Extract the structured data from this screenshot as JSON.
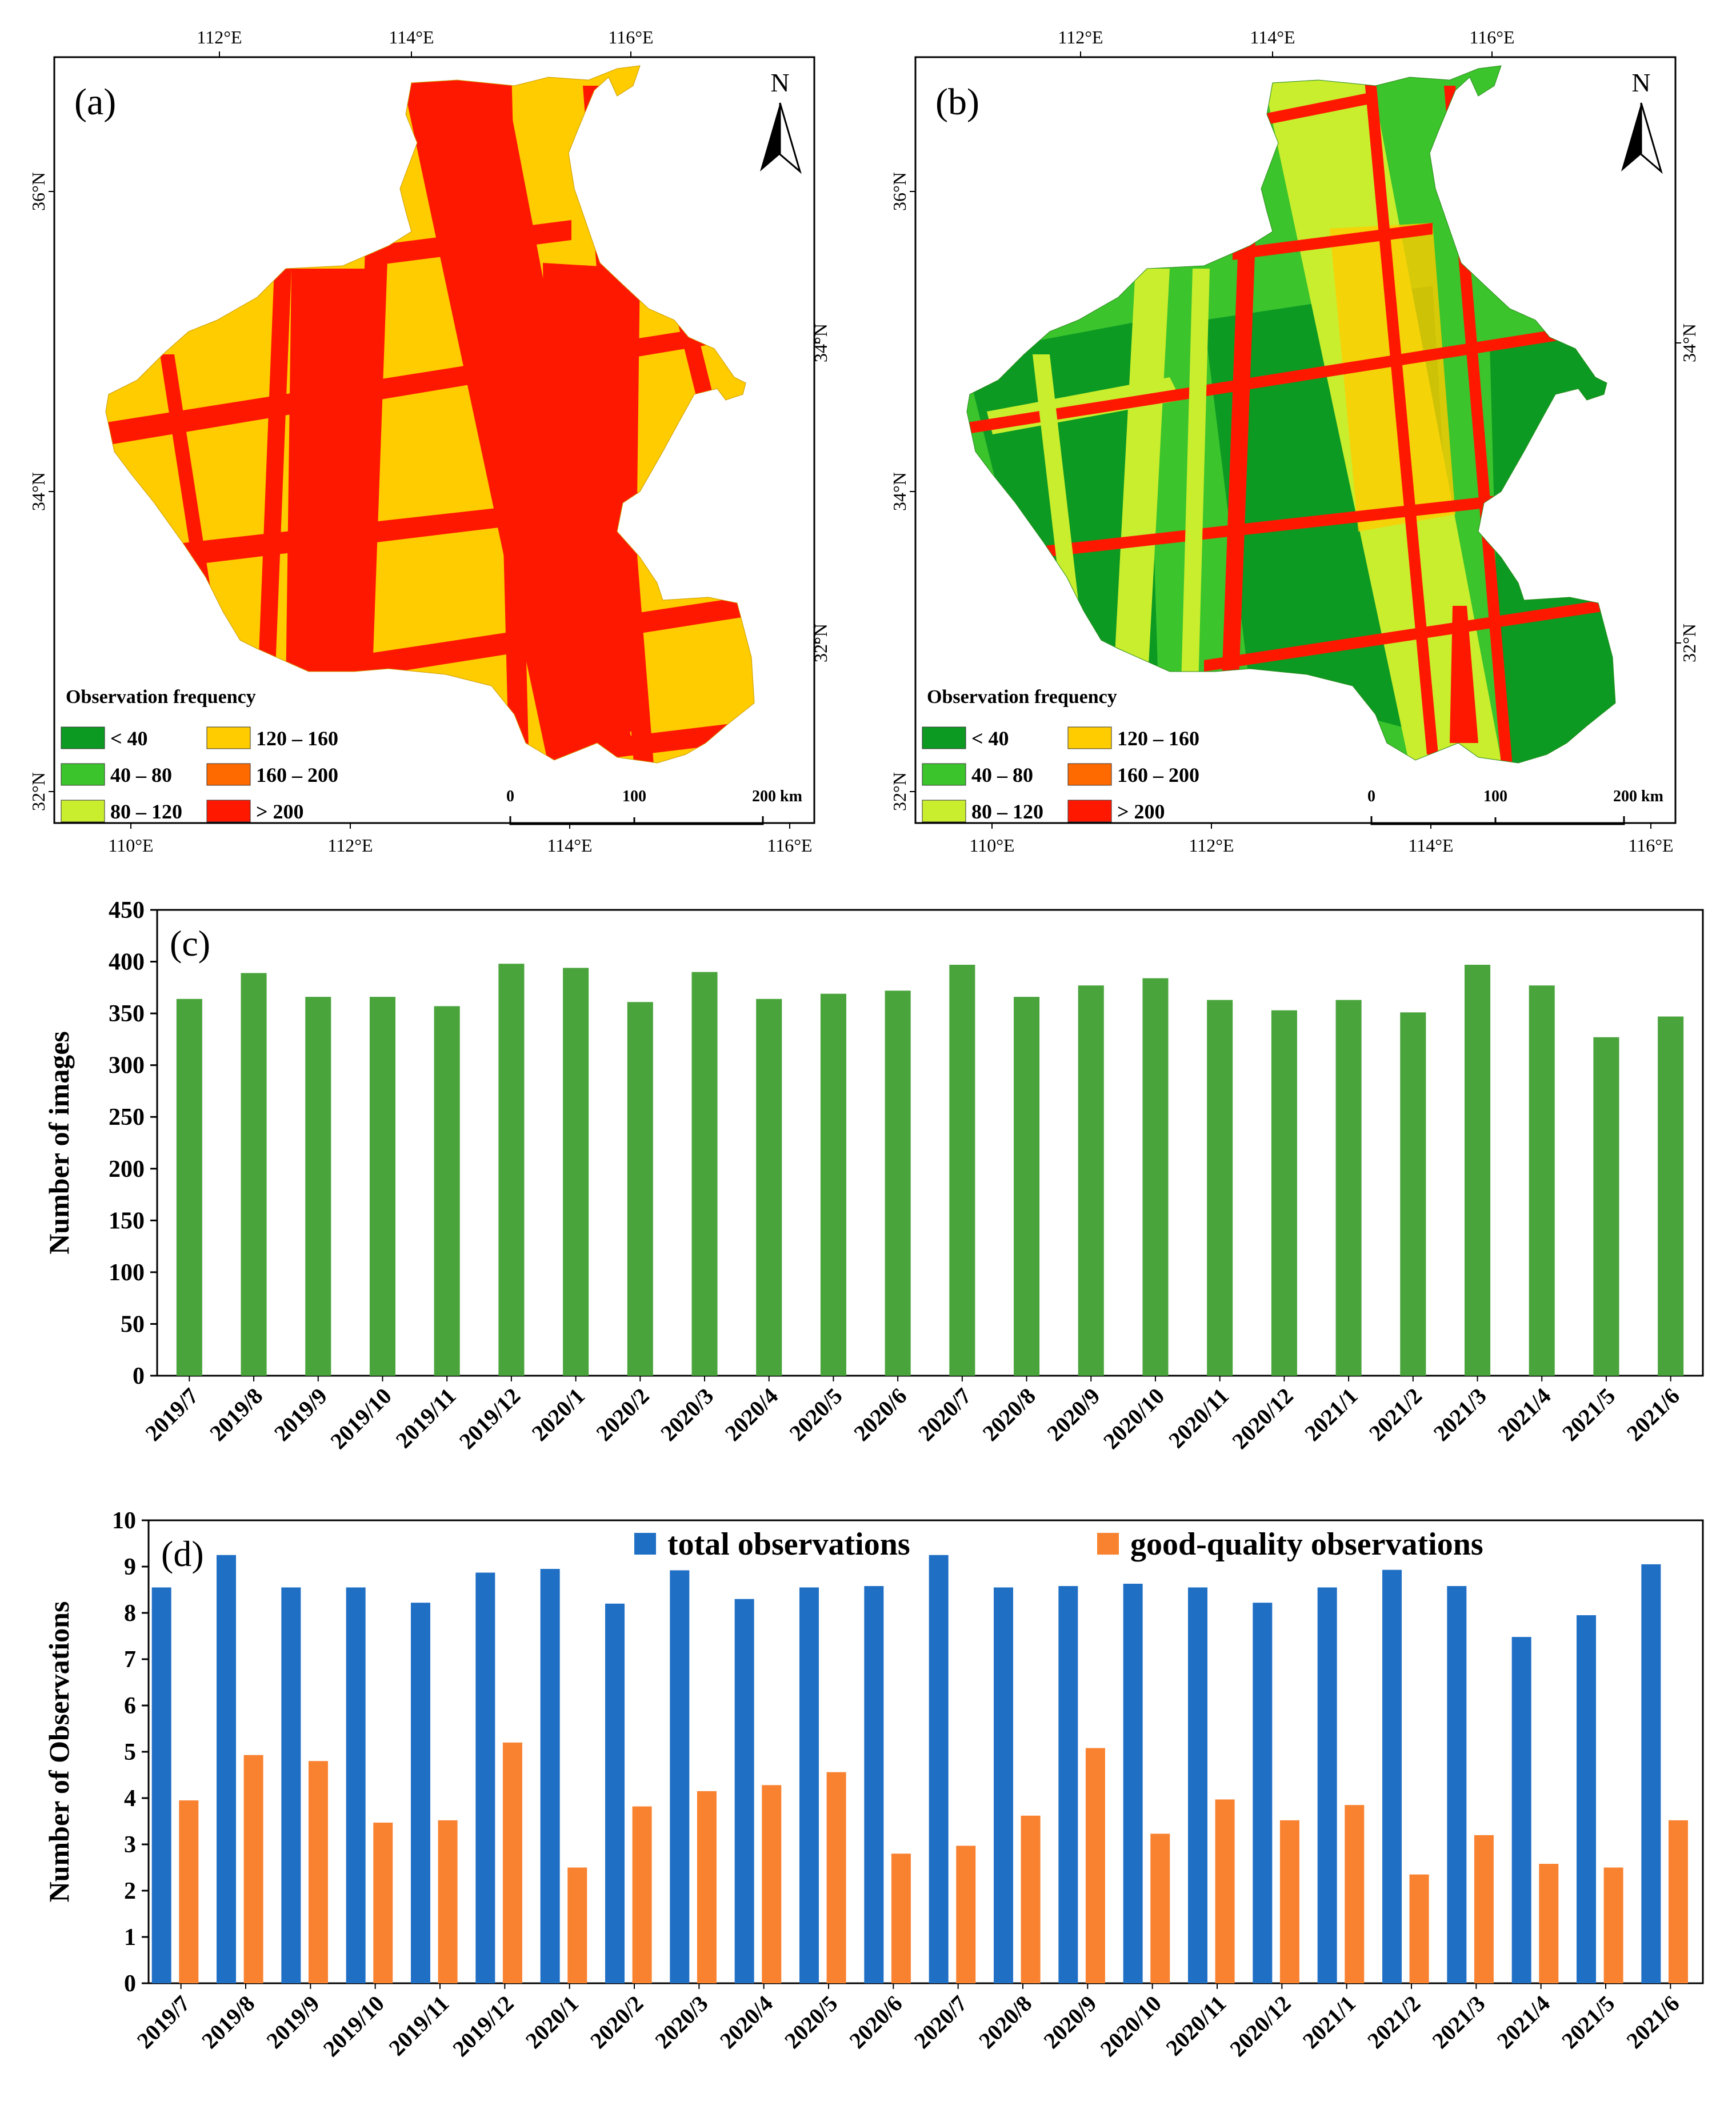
{
  "colors": {
    "c_lt40": "#0c9a23",
    "c_40_80": "#3bc42c",
    "c_80_120": "#c9ee2e",
    "c_120_160": "#ffcc00",
    "c_160_200": "#ff6a00",
    "c_gt200": "#ff1800",
    "bar_green": "#4aa43c",
    "bar_blue": "#1f6fc5",
    "bar_orange": "#f98231"
  },
  "map_a": {
    "label": "(a)",
    "north": "N",
    "top_ticks": [
      "112°E",
      "114°E",
      "116°E"
    ],
    "bottom_ticks": [
      "110°E",
      "112°E",
      "114°E",
      "116°E"
    ],
    "left_ticks": [
      "36°N",
      "34°N",
      "32°N"
    ],
    "right_ticks": [
      "34°N",
      "32°N"
    ],
    "legend_title": "Observation frequency",
    "legend": [
      "< 40",
      "40 – 80",
      "80 – 120",
      "120 – 160",
      "160 – 200",
      "> 200"
    ],
    "scale": [
      "0",
      "100",
      "200 km"
    ]
  },
  "map_b": {
    "label": "(b)",
    "north": "N",
    "top_ticks": [
      "112°E",
      "114°E",
      "116°E"
    ],
    "bottom_ticks": [
      "110°E",
      "112°E",
      "114°E",
      "116°E"
    ],
    "left_ticks": [
      "36°N",
      "34°N",
      "32°N"
    ],
    "right_ticks": [
      "34°N",
      "32°N"
    ],
    "legend_title": "Observation frequency",
    "legend": [
      "< 40",
      "40 – 80",
      "80 – 120",
      "120 – 160",
      "160 – 200",
      "> 200"
    ],
    "scale": [
      "0",
      "100",
      "200 km"
    ]
  },
  "chart_data": [
    {
      "type": "bar",
      "label": "(c)",
      "ylabel": "Number of images",
      "ylim": [
        0,
        450
      ],
      "yticks": [
        0,
        50,
        100,
        150,
        200,
        250,
        300,
        350,
        400,
        450
      ],
      "categories": [
        "2019/7",
        "2019/8",
        "2019/9",
        "2019/10",
        "2019/11",
        "2019/12",
        "2020/1",
        "2020/2",
        "2020/3",
        "2020/4",
        "2020/5",
        "2020/6",
        "2020/7",
        "2020/8",
        "2020/9",
        "2020/10",
        "2020/11",
        "2020/12",
        "2021/1",
        "2021/2",
        "2021/3",
        "2021/4",
        "2021/5",
        "2021/6"
      ],
      "values": [
        364,
        389,
        366,
        366,
        357,
        398,
        394,
        361,
        390,
        364,
        369,
        372,
        397,
        366,
        377,
        384,
        363,
        353,
        363,
        351,
        397,
        377,
        327,
        347
      ]
    },
    {
      "type": "bar",
      "label": "(d)",
      "ylabel": "Number of Observations",
      "ylim": [
        0,
        10
      ],
      "yticks": [
        0,
        1,
        2,
        3,
        4,
        5,
        6,
        7,
        8,
        9,
        10
      ],
      "categories": [
        "2019/7",
        "2019/8",
        "2019/9",
        "2019/10",
        "2019/11",
        "2019/12",
        "2020/1",
        "2020/2",
        "2020/3",
        "2020/4",
        "2020/5",
        "2020/6",
        "2020/7",
        "2020/8",
        "2020/9",
        "2020/10",
        "2020/11",
        "2020/12",
        "2021/1",
        "2021/2",
        "2021/3",
        "2021/4",
        "2021/5",
        "2021/6"
      ],
      "legend_placement": "top",
      "series": [
        {
          "name": "total observations",
          "values": [
            8.55,
            9.25,
            8.55,
            8.55,
            8.22,
            8.87,
            8.95,
            8.2,
            8.92,
            8.3,
            8.55,
            8.58,
            9.25,
            8.55,
            8.58,
            8.63,
            8.55,
            8.22,
            8.55,
            8.93,
            8.58,
            7.48,
            7.95,
            9.05
          ]
        },
        {
          "name": "good-quality observations",
          "values": [
            3.95,
            4.93,
            4.8,
            3.47,
            3.52,
            5.2,
            2.5,
            3.82,
            4.15,
            4.28,
            4.56,
            2.8,
            2.97,
            3.62,
            5.08,
            3.23,
            3.97,
            3.52,
            3.85,
            2.35,
            3.2,
            2.58,
            2.5,
            3.52
          ]
        }
      ]
    }
  ]
}
